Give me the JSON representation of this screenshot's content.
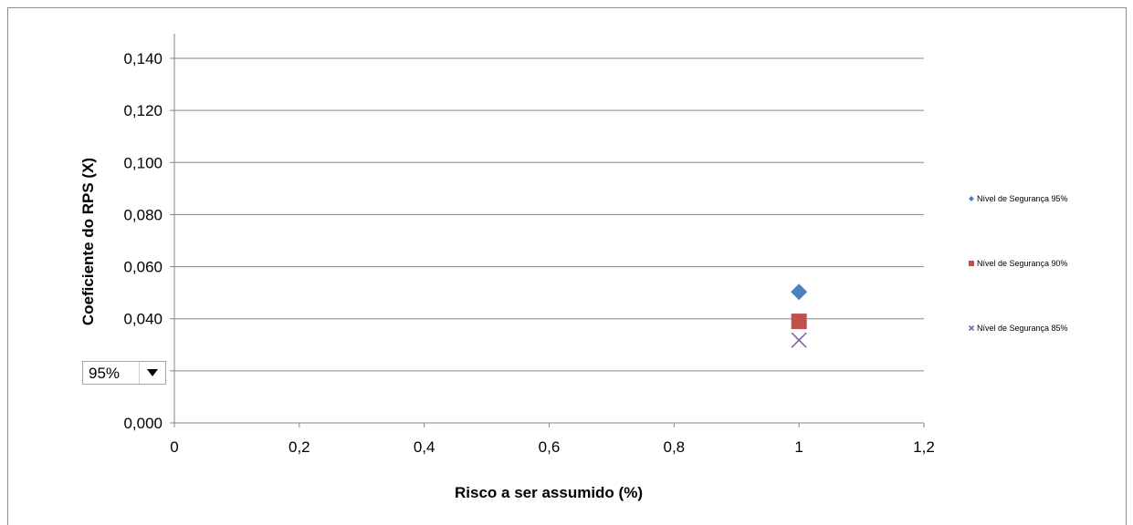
{
  "chart_data": {
    "type": "scatter",
    "title": "",
    "xlabel": "Risco a ser assumido (%)",
    "ylabel": "Coeficiente do RPS (X)",
    "xlim": [
      0,
      1.2
    ],
    "ylim": [
      0,
      0.14
    ],
    "x_ticks": [
      "0",
      "0,2",
      "0,4",
      "0,6",
      "0,8",
      "1",
      "1,2"
    ],
    "y_ticks": [
      "0,000",
      "0,020",
      "0,040",
      "0,060",
      "0,080",
      "0,100",
      "0,120",
      "0,140"
    ],
    "grid": "horizontal",
    "legend_position": "right",
    "series": [
      {
        "name": "Nível de Segurança 95%",
        "marker": "diamond",
        "color": "#4F81BD",
        "x": [
          1
        ],
        "y": [
          0.0503
        ]
      },
      {
        "name": "Nível de Segurança 90%",
        "marker": "square",
        "color": "#C0504D",
        "x": [
          1
        ],
        "y": [
          0.039
        ]
      },
      {
        "name": "Nível de Segurança 85%",
        "marker": "x",
        "color": "#8064A2",
        "x": [
          1
        ],
        "y": [
          0.0318
        ]
      }
    ]
  },
  "selector": {
    "value": "95%"
  }
}
